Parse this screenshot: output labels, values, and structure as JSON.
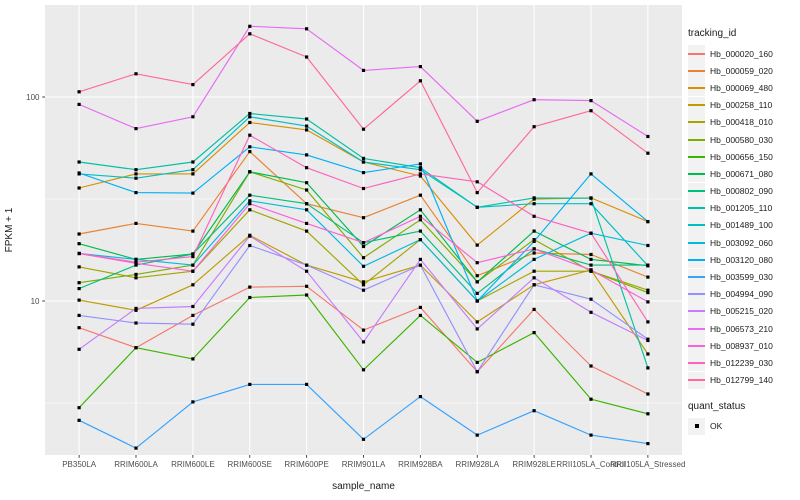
{
  "chart_data": {
    "type": "line",
    "title": "",
    "xlabel": "sample_name",
    "ylabel": "FPKM + 1",
    "y_scale": "log10",
    "y_major_ticks": [
      10,
      100
    ],
    "y_minor_gridlines": [
      3.162,
      31.623
    ],
    "ylim": [
      1.76,
      267
    ],
    "grid": "on",
    "legend_position": "right",
    "panel_bg": "#EBEBEB",
    "grid_color": "#FFFFFF",
    "point_color": "#000000",
    "tick_label_color": "#4d4d4d",
    "axis_title_color": "#1a1a1a",
    "categories": [
      "PB350LA",
      "RRIM600LA",
      "RRIM600LE",
      "RRIM600SE",
      "RRIM600PE",
      "RRIM901LA",
      "RRIM928BA",
      "RRIM928LA",
      "RRIM928LE",
      "RRII105LA_Control",
      "RRII105LA_Stressed"
    ],
    "series": [
      {
        "name": "Hb_000020_160",
        "color": "#F8766D",
        "values": [
          7.4,
          5.9,
          8.5,
          11.7,
          11.8,
          7.2,
          9.3,
          4.5,
          9.1,
          4.8,
          3.5
        ]
      },
      {
        "name": "Hb_000059_020",
        "color": "#EA8331",
        "values": [
          21.3,
          24,
          22,
          54,
          30,
          25.6,
          33,
          13.3,
          17.2,
          16.9,
          13.1
        ]
      },
      {
        "name": "Hb_000069_480",
        "color": "#D89000",
        "values": [
          35.8,
          42,
          42,
          75,
          69,
          48,
          41,
          18.8,
          31.6,
          32,
          24.5
        ]
      },
      {
        "name": "Hb_000258_110",
        "color": "#C09B00",
        "values": [
          10.1,
          9,
          12,
          21,
          15,
          12.4,
          15,
          7.9,
          12,
          14.2,
          5.5
        ]
      },
      {
        "name": "Hb_000418_010",
        "color": "#A3A500",
        "values": [
          14.7,
          13,
          14,
          28,
          22,
          12,
          20,
          10,
          14,
          14,
          11.3
        ]
      },
      {
        "name": "Hb_000580_030",
        "color": "#7CAE00",
        "values": [
          12.3,
          13.5,
          15,
          43,
          35,
          16.3,
          25,
          12.4,
          20,
          14,
          11
        ]
      },
      {
        "name": "Hb_000656_150",
        "color": "#39B600",
        "values": [
          3,
          5.9,
          5.2,
          10.4,
          10.7,
          4.6,
          8.5,
          5,
          7,
          3.3,
          2.8
        ]
      },
      {
        "name": "Hb_000671_080",
        "color": "#00BB4E",
        "values": [
          19.1,
          16,
          17,
          43,
          38,
          18.5,
          28,
          12.4,
          22,
          16,
          14.9
        ]
      },
      {
        "name": "Hb_000802_090",
        "color": "#00BF7D",
        "values": [
          11.5,
          15,
          17,
          33,
          30,
          19.3,
          22,
          10.9,
          18,
          15,
          15
        ]
      },
      {
        "name": "Hb_001205_110",
        "color": "#00C1A3",
        "values": [
          48,
          44,
          48,
          83,
          78,
          50,
          45,
          28.8,
          32,
          31.9,
          4.7
        ]
      },
      {
        "name": "Hb_001489_100",
        "color": "#00BFC4",
        "values": [
          42,
          40,
          44,
          80,
          72,
          48,
          44,
          28.8,
          30,
          30,
          14.9
        ]
      },
      {
        "name": "Hb_003092_060",
        "color": "#00BAE0",
        "values": [
          17.1,
          16,
          15,
          31,
          28,
          14.8,
          20,
          10,
          16,
          21.5,
          18.7
        ]
      },
      {
        "name": "Hb_003120_080",
        "color": "#00B0F6",
        "values": [
          42.4,
          34,
          33.8,
          57,
          52,
          42.6,
          47,
          10,
          19.6,
          42,
          24.5
        ]
      },
      {
        "name": "Hb_003599_030",
        "color": "#35A2FF",
        "values": [
          2.6,
          1.9,
          3.2,
          3.9,
          3.9,
          2.1,
          3.4,
          2.2,
          2.9,
          2.2,
          2
        ]
      },
      {
        "name": "Hb_004994_090",
        "color": "#9590FF",
        "values": [
          8.5,
          7.8,
          7.7,
          18.7,
          15,
          11.3,
          15,
          4.5,
          12,
          10.2,
          6.5
        ]
      },
      {
        "name": "Hb_005215_020",
        "color": "#C77CFF",
        "values": [
          5.8,
          9.2,
          9.4,
          20.8,
          14,
          6.3,
          16,
          7.3,
          13,
          8.8,
          6.4
        ]
      },
      {
        "name": "Hb_006573_210",
        "color": "#E76BF3",
        "values": [
          92,
          70,
          80,
          222,
          216,
          135,
          141,
          76,
          97,
          96,
          64
        ]
      },
      {
        "name": "Hb_008937_010",
        "color": "#FA62DB",
        "values": [
          17.1,
          15.3,
          14,
          30,
          24,
          19.3,
          26,
          15.4,
          18,
          14.2,
          9.9
        ]
      },
      {
        "name": "Hb_012239_030",
        "color": "#FF62BC",
        "values": [
          17.1,
          15.5,
          16.5,
          65,
          45,
          35.6,
          42,
          38.4,
          26,
          21.5,
          7.9
        ]
      },
      {
        "name": "Hb_012799_140",
        "color": "#FF6A98",
        "values": [
          106,
          130,
          115,
          204,
          157,
          69.5,
          120,
          34,
          71.5,
          85.7,
          53
        ]
      }
    ],
    "legend": {
      "tracking_title": "tracking_id",
      "quant_title": "quant_status",
      "quant_items": [
        "OK"
      ],
      "quant_marker": "black-square"
    }
  }
}
